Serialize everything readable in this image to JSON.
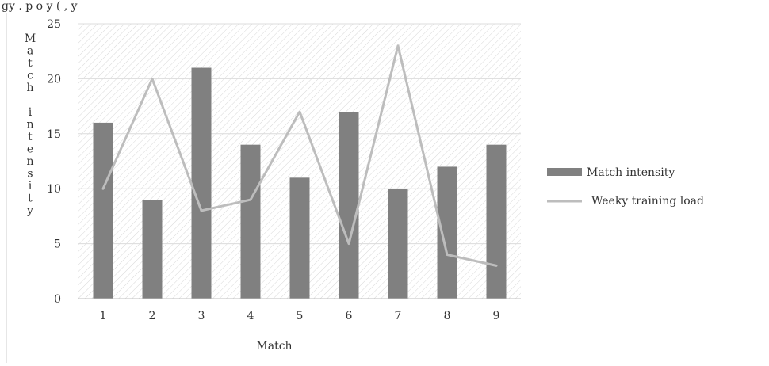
{
  "top_caption": "gy . p o                              y (     ,     y",
  "chart_data": {
    "type": "bar",
    "categories": [
      "1",
      "2",
      "3",
      "4",
      "5",
      "6",
      "7",
      "8",
      "9"
    ],
    "series": [
      {
        "name": "Match intensity",
        "type": "bar",
        "values": [
          16,
          9,
          21,
          14,
          11,
          17,
          10,
          12,
          14
        ],
        "color": "#808080"
      },
      {
        "name": "Weeky training load",
        "type": "line",
        "values": [
          10,
          20,
          8,
          9,
          17,
          5,
          23,
          4,
          3
        ],
        "color": "#bdbdbd"
      }
    ],
    "xlabel": "Match",
    "ylabel": "Match intensity",
    "ylim": [
      0,
      25
    ],
    "yticks": [
      "0",
      "5",
      "10",
      "15",
      "20",
      "25"
    ],
    "grid": true,
    "background_pattern": "diagonal-hatch",
    "legend_position": "right"
  }
}
